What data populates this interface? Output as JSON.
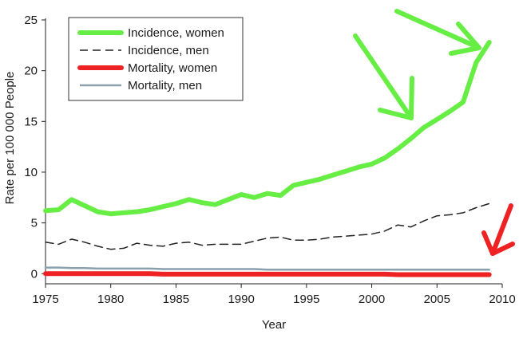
{
  "chart_data": {
    "type": "line",
    "xlabel": "Year",
    "ylabel": "Rate per 100 000 People",
    "xlim": [
      1975,
      2010
    ],
    "ylim": [
      -1,
      25
    ],
    "xticks": [
      1975,
      1980,
      1985,
      1990,
      1995,
      2000,
      2005,
      2010
    ],
    "yticks": [
      0,
      5,
      10,
      15,
      20,
      25
    ],
    "grid": false,
    "legend_position": "top-left",
    "x": [
      1975,
      1976,
      1977,
      1978,
      1979,
      1980,
      1981,
      1982,
      1983,
      1984,
      1985,
      1986,
      1987,
      1988,
      1989,
      1990,
      1991,
      1992,
      1993,
      1994,
      1995,
      1996,
      1997,
      1998,
      1999,
      2000,
      2001,
      2002,
      2003,
      2004,
      2005,
      2006,
      2007,
      2008,
      2009
    ],
    "series": [
      {
        "name": "Incidence, women",
        "color": "#66ee44",
        "style": "solid-thick",
        "values": [
          6.2,
          6.3,
          7.3,
          6.7,
          6.1,
          5.9,
          6.0,
          6.1,
          6.3,
          6.6,
          6.9,
          7.3,
          7.0,
          6.8,
          7.3,
          7.8,
          7.5,
          7.9,
          7.7,
          8.7,
          9.0,
          9.3,
          9.7,
          10.1,
          10.5,
          10.8,
          11.4,
          12.3,
          13.3,
          14.4,
          15.2,
          16.0,
          16.9,
          20.8,
          22.8
        ]
      },
      {
        "name": "Incidence, men",
        "color": "#222222",
        "style": "dashed",
        "values": [
          3.1,
          2.9,
          3.4,
          3.1,
          2.7,
          2.4,
          2.5,
          3.0,
          2.8,
          2.7,
          3.0,
          3.1,
          2.8,
          2.9,
          2.9,
          2.9,
          3.2,
          3.5,
          3.6,
          3.3,
          3.3,
          3.4,
          3.6,
          3.7,
          3.8,
          3.9,
          4.2,
          4.8,
          4.6,
          5.2,
          5.7,
          5.8,
          6.0,
          6.5,
          6.9
        ]
      },
      {
        "name": "Mortality, women",
        "color": "#ee2222",
        "style": "solid-thick",
        "values": [
          0.0,
          0.0,
          0.0,
          0.0,
          0.0,
          0.0,
          0.0,
          0.0,
          0.0,
          -0.05,
          -0.05,
          -0.05,
          -0.05,
          -0.05,
          -0.05,
          -0.05,
          -0.05,
          -0.05,
          -0.05,
          -0.05,
          -0.05,
          -0.05,
          -0.05,
          -0.05,
          -0.05,
          -0.05,
          -0.05,
          -0.1,
          -0.1,
          -0.1,
          -0.1,
          -0.1,
          -0.1,
          -0.1,
          -0.1
        ]
      },
      {
        "name": "Mortality, men",
        "color": "#8aa0ad",
        "style": "solid",
        "values": [
          0.6,
          0.6,
          0.55,
          0.55,
          0.5,
          0.5,
          0.5,
          0.5,
          0.5,
          0.45,
          0.45,
          0.45,
          0.45,
          0.45,
          0.45,
          0.45,
          0.45,
          0.4,
          0.4,
          0.4,
          0.4,
          0.4,
          0.4,
          0.4,
          0.4,
          0.4,
          0.4,
          0.4,
          0.4,
          0.4,
          0.4,
          0.4,
          0.4,
          0.4,
          0.4
        ]
      }
    ],
    "annotations": [
      {
        "type": "arrow",
        "color": "#66ee44",
        "description": "green hand-drawn arrow pointing down toward incidence curve near 2003"
      },
      {
        "type": "arrow",
        "color": "#66ee44",
        "description": "green hand-drawn arrow pointing right toward incidence curve near 2010"
      },
      {
        "type": "arrow",
        "color": "#ee2222",
        "description": "red hand-drawn arrow pointing down-left toward mortality curves near 2009"
      }
    ]
  }
}
